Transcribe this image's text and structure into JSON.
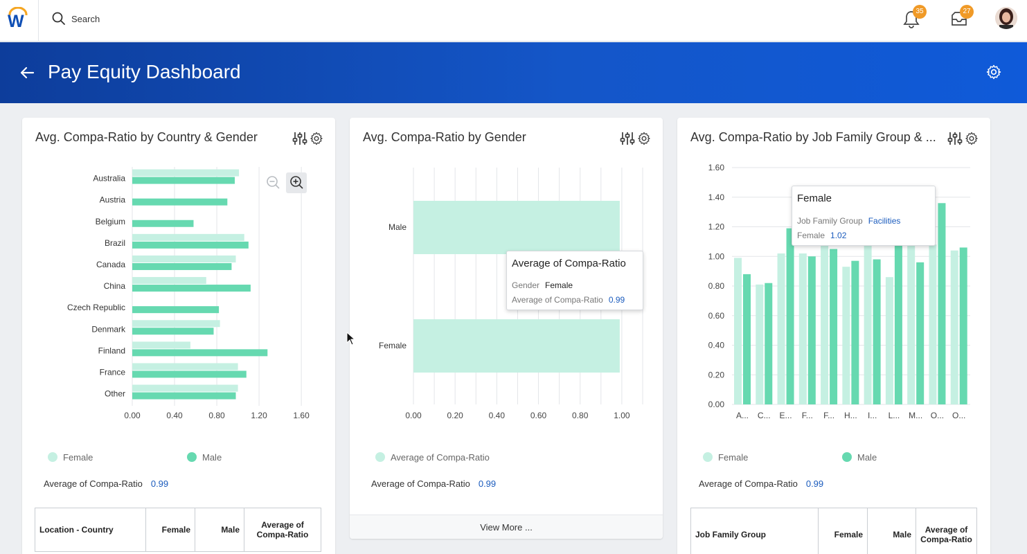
{
  "app": {
    "search_placeholder": "Search",
    "notifications_count": "35",
    "inbox_count": "27"
  },
  "header": {
    "title": "Pay Equity Dashboard"
  },
  "colors": {
    "female": "#c5f0e2",
    "male": "#66d9b0",
    "brand_blue": "#0f52c9",
    "badge": "#f09a27"
  },
  "cards": [
    {
      "title": "Avg. Compa-Ratio by Country & Gender",
      "legend": [
        "Female",
        "Male"
      ],
      "avg_label": "Average of Compa-Ratio",
      "avg_value": "0.99",
      "table_headers": [
        "Location - Country",
        "Female",
        "Male",
        "Average of Compa-Ratio"
      ]
    },
    {
      "title": "Avg. Compa-Ratio by Gender",
      "legend": [
        "Average of Compa-Ratio"
      ],
      "avg_label": "Average of Compa-Ratio",
      "avg_value": "0.99",
      "view_more": "View More ...",
      "tooltip": {
        "title": "Average of Compa-Ratio",
        "row1_label": "Gender",
        "row1_value": "Female",
        "row2_label": "Average of Compa-Ratio",
        "row2_value": "0.99"
      }
    },
    {
      "title": "Avg. Compa-Ratio by Job Family Group & ...",
      "legend": [
        "Female",
        "Male"
      ],
      "avg_label": "Average of Compa-Ratio",
      "avg_value": "0.99",
      "table_headers": [
        "Job Family Group",
        "Female",
        "Male",
        "Average of Compa-Ratio"
      ],
      "tooltip": {
        "title": "Female",
        "row1_label": "Job Family Group",
        "row1_value": "Facilities",
        "row2_label": "Female",
        "row2_value": "1.02"
      }
    }
  ],
  "chart_data": [
    {
      "type": "bar",
      "orientation": "horizontal",
      "categories": [
        "Australia",
        "Austria",
        "Belgium",
        "Brazil",
        "Canada",
        "China",
        "Czech Republic",
        "Denmark",
        "Finland",
        "France",
        "Other"
      ],
      "series": [
        {
          "name": "Female",
          "values": [
            1.01,
            null,
            null,
            1.06,
            0.98,
            0.7,
            null,
            0.83,
            0.55,
            1.0,
            1.0
          ]
        },
        {
          "name": "Male",
          "values": [
            0.97,
            0.9,
            0.58,
            1.1,
            0.94,
            1.12,
            0.82,
            0.77,
            1.28,
            1.08,
            0.98
          ]
        }
      ],
      "xticks": [
        "0.00",
        "0.40",
        "0.80",
        "1.20",
        "1.60"
      ],
      "xlim": [
        0,
        1.75
      ],
      "grid": true
    },
    {
      "type": "bar",
      "orientation": "horizontal",
      "categories": [
        "Male",
        "Female"
      ],
      "series": [
        {
          "name": "Average of Compa-Ratio",
          "values": [
            0.99,
            0.99
          ]
        }
      ],
      "xticks": [
        "0.00",
        "0.20",
        "0.40",
        "0.60",
        "0.80",
        "1.00"
      ],
      "xlim": [
        0,
        1.1
      ],
      "grid": true
    },
    {
      "type": "bar",
      "orientation": "vertical",
      "categories": [
        "A...",
        "C...",
        "E...",
        "F...",
        "F...",
        "H...",
        "I...",
        "L...",
        "M...",
        "O...",
        "O..."
      ],
      "series": [
        {
          "name": "Female",
          "values": [
            0.99,
            0.81,
            1.02,
            1.02,
            1.1,
            0.93,
            1.12,
            0.86,
            1.15,
            1.08,
            1.04
          ]
        },
        {
          "name": "Male",
          "values": [
            0.88,
            0.82,
            1.19,
            1.0,
            1.05,
            0.97,
            0.98,
            1.1,
            0.96,
            1.36,
            1.06
          ]
        }
      ],
      "yticks": [
        "0.00",
        "0.20",
        "0.40",
        "0.60",
        "0.80",
        "1.00",
        "1.20",
        "1.40",
        "1.60"
      ],
      "ylim": [
        0,
        1.6
      ],
      "grid": true
    }
  ]
}
